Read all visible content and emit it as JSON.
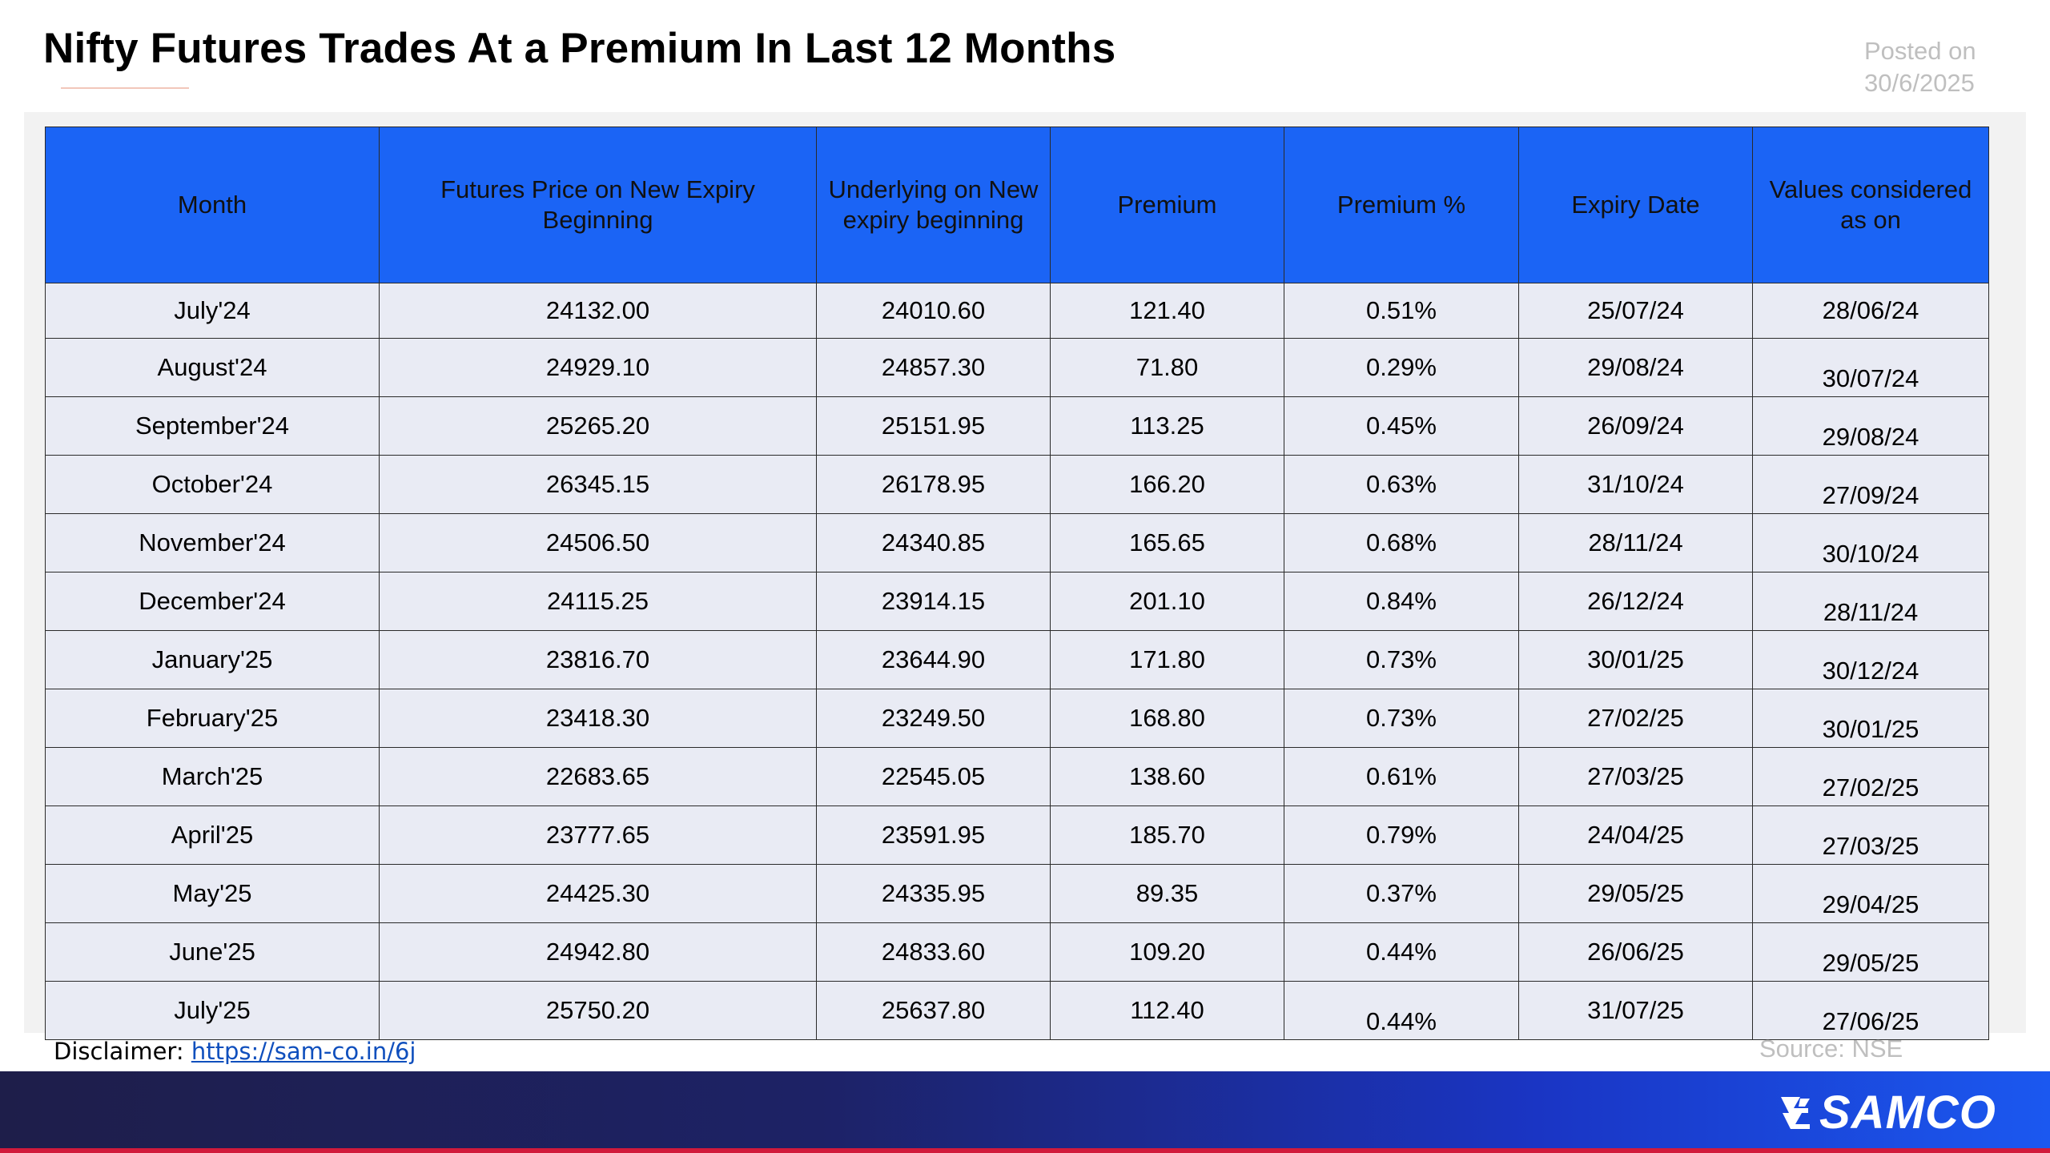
{
  "header": {
    "title": "Nifty Futures Trades At a Premium In Last 12 Months",
    "posted_line1": "Posted on",
    "posted_line2": "30/6/2025"
  },
  "table": {
    "columns": [
      "Month",
      "Futures Price on New Expiry Beginning",
      "Underlying on New expiry beginning",
      "Premium",
      "Premium %",
      "Expiry Date",
      "Values considered as on"
    ],
    "rows": [
      [
        "July'24",
        "24132.00",
        "24010.60",
        "121.40",
        "0.51%",
        "25/07/24",
        "28/06/24"
      ],
      [
        "August'24",
        "24929.10",
        "24857.30",
        "71.80",
        "0.29%",
        "29/08/24",
        "30/07/24"
      ],
      [
        "September'24",
        "25265.20",
        "25151.95",
        "113.25",
        "0.45%",
        "26/09/24",
        "29/08/24"
      ],
      [
        "October'24",
        "26345.15",
        "26178.95",
        "166.20",
        "0.63%",
        "31/10/24",
        "27/09/24"
      ],
      [
        "November'24",
        "24506.50",
        "24340.85",
        "165.65",
        "0.68%",
        "28/11/24",
        "30/10/24"
      ],
      [
        "December'24",
        "24115.25",
        "23914.15",
        "201.10",
        "0.84%",
        "26/12/24",
        "28/11/24"
      ],
      [
        "January'25",
        "23816.70",
        "23644.90",
        "171.80",
        "0.73%",
        "30/01/25",
        "30/12/24"
      ],
      [
        "February'25",
        "23418.30",
        "23249.50",
        "168.80",
        "0.73%",
        "27/02/25",
        "30/01/25"
      ],
      [
        "March'25",
        "22683.65",
        "22545.05",
        "138.60",
        "0.61%",
        "27/03/25",
        "27/02/25"
      ],
      [
        "April'25",
        "23777.65",
        "23591.95",
        "185.70",
        "0.79%",
        "24/04/25",
        "27/03/25"
      ],
      [
        "May'25",
        "24425.30",
        "24335.95",
        "89.35",
        "0.37%",
        "29/05/25",
        "29/04/25"
      ],
      [
        "June'25",
        "24942.80",
        "24833.60",
        "109.20",
        "0.44%",
        "26/06/25",
        "29/05/25"
      ],
      [
        "July'25",
        "25750.20",
        "25637.80",
        "112.40",
        "0.44%",
        "31/07/25",
        "27/06/25"
      ]
    ]
  },
  "footer": {
    "disclaimer_label": "Disclaimer: ",
    "disclaimer_link": "https://sam-co.in/6j",
    "source": "Source: NSE",
    "brand": "SAMCO"
  },
  "colors": {
    "header_fill": "#1b64f5",
    "row_fill": "#e9ebf4",
    "footer_start": "#1e1e4a",
    "footer_end": "#1b58f0",
    "footer_line": "#d11a3b"
  }
}
